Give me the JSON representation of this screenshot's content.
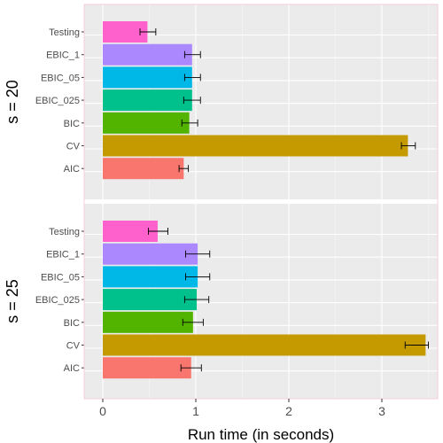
{
  "chart_data": {
    "type": "bar",
    "orientation": "horizontal",
    "xlabel": "Run time (in seconds)",
    "xlim": [
      -0.2,
      3.6
    ],
    "xticks": [
      0,
      1,
      2,
      3
    ],
    "grid": true,
    "legend": "none",
    "categories": [
      "Testing",
      "EBIC_1",
      "EBIC_05",
      "EBIC_025",
      "BIC",
      "CV",
      "AIC"
    ],
    "colors": {
      "Testing": "#FF61CC",
      "EBIC_1": "#AC88FF",
      "EBIC_05": "#00B8E7",
      "EBIC_025": "#00C08B",
      "BIC": "#53B400",
      "CV": "#C49A00",
      "AIC": "#F8766D"
    },
    "panels": [
      {
        "label": "s = 20",
        "values": [
          0.48,
          0.96,
          0.96,
          0.96,
          0.93,
          3.28,
          0.87
        ],
        "error_low": [
          0.4,
          0.88,
          0.88,
          0.87,
          0.85,
          3.21,
          0.82
        ],
        "error_high": [
          0.57,
          1.05,
          1.05,
          1.05,
          1.02,
          3.36,
          0.92
        ]
      },
      {
        "label": "s = 25",
        "values": [
          0.59,
          1.02,
          1.02,
          1.01,
          0.97,
          3.47,
          0.95
        ],
        "error_low": [
          0.49,
          0.89,
          0.89,
          0.88,
          0.86,
          3.25,
          0.84
        ],
        "error_high": [
          0.7,
          1.15,
          1.15,
          1.14,
          1.08,
          3.5,
          1.06
        ]
      }
    ]
  }
}
